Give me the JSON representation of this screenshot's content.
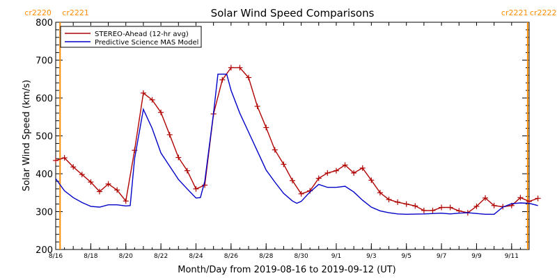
{
  "chart_data": {
    "type": "line",
    "title": "Solar Wind Speed Comparisons",
    "xlabel": "Month/Day from 2019-08-16 to 2019-09-12 (UT)",
    "ylabel": "Solar Wind Speed (km/s)",
    "xlim": [
      "2019-08-16",
      "2019-09-12"
    ],
    "ylim": [
      200,
      800
    ],
    "yticks": [
      200,
      300,
      400,
      500,
      600,
      700,
      800
    ],
    "xticks": [
      {
        "date": "2019-08-16",
        "label": "8/16"
      },
      {
        "date": "2019-08-18",
        "label": "8/18"
      },
      {
        "date": "2019-08-20",
        "label": "8/20"
      },
      {
        "date": "2019-08-22",
        "label": "8/22"
      },
      {
        "date": "2019-08-24",
        "label": "8/24"
      },
      {
        "date": "2019-08-26",
        "label": "8/26"
      },
      {
        "date": "2019-08-28",
        "label": "8/28"
      },
      {
        "date": "2019-08-30",
        "label": "8/30"
      },
      {
        "date": "2019-09-01",
        "label": "9/1"
      },
      {
        "date": "2019-09-03",
        "label": "9/3"
      },
      {
        "date": "2019-09-05",
        "label": "9/5"
      },
      {
        "date": "2019-09-07",
        "label": "9/7"
      },
      {
        "date": "2019-09-09",
        "label": "9/9"
      },
      {
        "date": "2019-09-11",
        "label": "9/11"
      }
    ],
    "legend_position": "top-left",
    "carrington_boundaries": [
      {
        "date": "2019-08-16 06:00",
        "left_label": "cr2220",
        "right_label": "cr2221",
        "side": "left",
        "color": "#ff8c00"
      },
      {
        "date": "2019-09-11 22:00",
        "left_label": "cr2221",
        "right_label": "cr2222",
        "side": "right",
        "color": "#ff8c00"
      }
    ],
    "series": [
      {
        "name": "STEREO-Ahead (12-hr avg)",
        "color": "#b00000",
        "markers": true,
        "points": [
          [
            "2019-08-16 00:00",
            435
          ],
          [
            "2019-08-16 12:00",
            442
          ],
          [
            "2019-08-17 00:00",
            418
          ],
          [
            "2019-08-17 12:00",
            398
          ],
          [
            "2019-08-18 00:00",
            378
          ],
          [
            "2019-08-18 12:00",
            353
          ],
          [
            "2019-08-19 00:00",
            373
          ],
          [
            "2019-08-19 12:00",
            357
          ],
          [
            "2019-08-20 00:00",
            328
          ],
          [
            "2019-08-20 12:00",
            462
          ],
          [
            "2019-08-21 00:00",
            613
          ],
          [
            "2019-08-21 12:00",
            595
          ],
          [
            "2019-08-22 00:00",
            562
          ],
          [
            "2019-08-22 12:00",
            503
          ],
          [
            "2019-08-23 00:00",
            443
          ],
          [
            "2019-08-23 12:00",
            408
          ],
          [
            "2019-08-24 00:00",
            360
          ],
          [
            "2019-08-24 12:00",
            370
          ],
          [
            "2019-08-25 00:00",
            558
          ],
          [
            "2019-08-25 12:00",
            648
          ],
          [
            "2019-08-26 00:00",
            680
          ],
          [
            "2019-08-26 12:00",
            680
          ],
          [
            "2019-08-27 00:00",
            654
          ],
          [
            "2019-08-27 12:00",
            578
          ],
          [
            "2019-08-28 00:00",
            522
          ],
          [
            "2019-08-28 12:00",
            463
          ],
          [
            "2019-08-29 00:00",
            425
          ],
          [
            "2019-08-29 12:00",
            382
          ],
          [
            "2019-08-30 00:00",
            347
          ],
          [
            "2019-08-30 12:00",
            355
          ],
          [
            "2019-08-31 00:00",
            388
          ],
          [
            "2019-08-31 12:00",
            402
          ],
          [
            "2019-09-01 00:00",
            408
          ],
          [
            "2019-09-01 12:00",
            423
          ],
          [
            "2019-09-02 00:00",
            402
          ],
          [
            "2019-09-02 12:00",
            415
          ],
          [
            "2019-09-03 00:00",
            383
          ],
          [
            "2019-09-03 12:00",
            350
          ],
          [
            "2019-09-04 00:00",
            332
          ],
          [
            "2019-09-04 12:00",
            325
          ],
          [
            "2019-09-05 00:00",
            320
          ],
          [
            "2019-09-05 12:00",
            315
          ],
          [
            "2019-09-06 00:00",
            303
          ],
          [
            "2019-09-06 12:00",
            303
          ],
          [
            "2019-09-07 00:00",
            311
          ],
          [
            "2019-09-07 12:00",
            311
          ],
          [
            "2019-09-08 00:00",
            302
          ],
          [
            "2019-09-08 12:00",
            297
          ],
          [
            "2019-09-09 00:00",
            314
          ],
          [
            "2019-09-09 12:00",
            336
          ],
          [
            "2019-09-10 00:00",
            316
          ],
          [
            "2019-09-10 12:00",
            313
          ],
          [
            "2019-09-11 00:00",
            316
          ],
          [
            "2019-09-11 12:00",
            337
          ],
          [
            "2019-09-12 00:00",
            327
          ],
          [
            "2019-09-12 12:00",
            335
          ]
        ]
      },
      {
        "name": "Predictive Science MAS Model",
        "color": "#0000c8",
        "markers": false,
        "points": [
          [
            "2019-08-16 00:00",
            387
          ],
          [
            "2019-08-16 12:00",
            355
          ],
          [
            "2019-08-17 00:00",
            337
          ],
          [
            "2019-08-17 12:00",
            324
          ],
          [
            "2019-08-18 00:00",
            314
          ],
          [
            "2019-08-18 12:00",
            312
          ],
          [
            "2019-08-19 00:00",
            318
          ],
          [
            "2019-08-19 12:00",
            318
          ],
          [
            "2019-08-20 00:00",
            315
          ],
          [
            "2019-08-20 06:00",
            316
          ],
          [
            "2019-08-20 12:00",
            440
          ],
          [
            "2019-08-21 00:00",
            570
          ],
          [
            "2019-08-21 12:00",
            520
          ],
          [
            "2019-08-22 00:00",
            455
          ],
          [
            "2019-08-22 12:00",
            420
          ],
          [
            "2019-08-23 00:00",
            385
          ],
          [
            "2019-08-23 12:00",
            360
          ],
          [
            "2019-08-24 00:00",
            336
          ],
          [
            "2019-08-24 06:00",
            337
          ],
          [
            "2019-08-24 12:00",
            380
          ],
          [
            "2019-08-25 00:00",
            560
          ],
          [
            "2019-08-25 06:00",
            663
          ],
          [
            "2019-08-25 18:00",
            663
          ],
          [
            "2019-08-26 00:00",
            620
          ],
          [
            "2019-08-26 12:00",
            560
          ],
          [
            "2019-08-27 00:00",
            510
          ],
          [
            "2019-08-27 12:00",
            460
          ],
          [
            "2019-08-28 00:00",
            410
          ],
          [
            "2019-08-28 12:00",
            378
          ],
          [
            "2019-08-29 00:00",
            348
          ],
          [
            "2019-08-29 12:00",
            328
          ],
          [
            "2019-08-29 18:00",
            322
          ],
          [
            "2019-08-30 00:00",
            327
          ],
          [
            "2019-08-30 12:00",
            352
          ],
          [
            "2019-08-31 00:00",
            372
          ],
          [
            "2019-08-31 12:00",
            364
          ],
          [
            "2019-09-01 00:00",
            364
          ],
          [
            "2019-09-01 12:00",
            367
          ],
          [
            "2019-09-02 00:00",
            352
          ],
          [
            "2019-09-02 12:00",
            330
          ],
          [
            "2019-09-03 00:00",
            312
          ],
          [
            "2019-09-03 12:00",
            302
          ],
          [
            "2019-09-04 00:00",
            297
          ],
          [
            "2019-09-04 12:00",
            294
          ],
          [
            "2019-09-05 00:00",
            293
          ],
          [
            "2019-09-06 00:00",
            294
          ],
          [
            "2019-09-07 00:00",
            296
          ],
          [
            "2019-09-07 12:00",
            294
          ],
          [
            "2019-09-08 00:00",
            296
          ],
          [
            "2019-09-08 12:00",
            297
          ],
          [
            "2019-09-09 00:00",
            295
          ],
          [
            "2019-09-09 12:00",
            293
          ],
          [
            "2019-09-10 00:00",
            293
          ],
          [
            "2019-09-10 12:00",
            312
          ],
          [
            "2019-09-11 00:00",
            321
          ],
          [
            "2019-09-11 12:00",
            323
          ],
          [
            "2019-09-12 00:00",
            322
          ],
          [
            "2019-09-12 12:00",
            316
          ]
        ]
      }
    ]
  }
}
